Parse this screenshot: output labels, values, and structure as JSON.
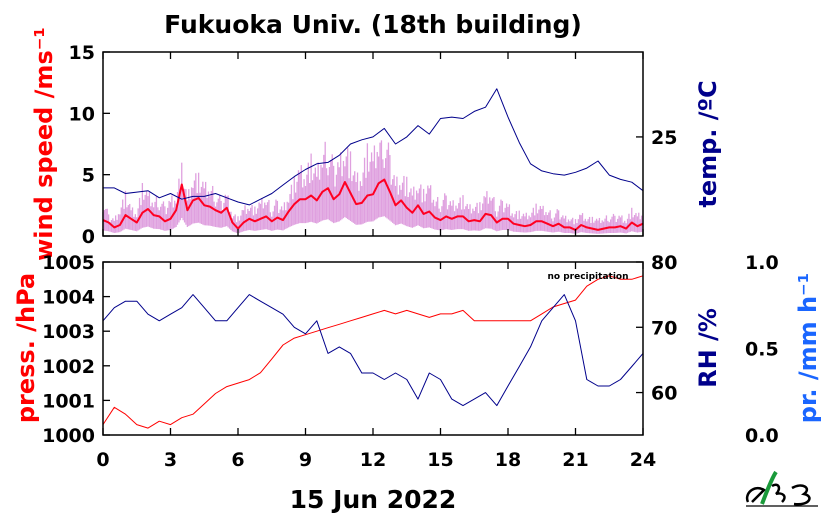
{
  "title": "Fukuoka Univ. (18th building)",
  "date_label": "15 Jun 2022",
  "colors": {
    "wind_mean": "#ff0022",
    "wind_gust": "#d98fd9",
    "temperature": "#00008b",
    "pressure": "#ff0000",
    "rh": "#00008b",
    "precip": "#1a66ff",
    "logo_green": "#1a9a3a"
  },
  "logo_icon": "fukuoka-univ-logo",
  "chart_data": [
    {
      "type": "line",
      "panel": "top",
      "title": "Fukuoka Univ. (18th building)",
      "xlabel": "",
      "x_ticks": [
        "0",
        "3",
        "6",
        "9",
        "12",
        "15",
        "18",
        "21",
        "24"
      ],
      "xlim": [
        0,
        24
      ],
      "ylabel_left": "wind speed /ms⁻¹",
      "ylim_left": [
        0,
        15
      ],
      "yticks_left": [
        "0",
        "5",
        "10",
        "15"
      ],
      "ylabel_right": "temp. /ºC",
      "ylim_right": [
        18,
        31
      ],
      "yticks_right": [
        "25"
      ],
      "series": [
        {
          "name": "wind speed (mean)",
          "axis": "left",
          "x": [
            0,
            0.25,
            0.5,
            0.75,
            1.0,
            1.25,
            1.5,
            1.75,
            2.0,
            2.25,
            2.5,
            2.75,
            3.0,
            3.25,
            3.5,
            3.75,
            4.0,
            4.25,
            4.5,
            4.75,
            5.0,
            5.25,
            5.5,
            5.75,
            6.0,
            6.25,
            6.5,
            6.75,
            7.0,
            7.25,
            7.5,
            7.75,
            8.0,
            8.25,
            8.5,
            8.75,
            9.0,
            9.25,
            9.5,
            9.75,
            10.0,
            10.25,
            10.5,
            10.75,
            11.0,
            11.25,
            11.5,
            11.75,
            12.0,
            12.25,
            12.5,
            12.75,
            13.0,
            13.25,
            13.5,
            13.75,
            14.0,
            14.25,
            14.5,
            14.75,
            15.0,
            15.25,
            15.5,
            15.75,
            16.0,
            16.25,
            16.5,
            16.75,
            17.0,
            17.25,
            17.5,
            17.75,
            18.0,
            18.25,
            18.5,
            18.75,
            19.0,
            19.25,
            19.5,
            19.75,
            20.0,
            20.25,
            20.5,
            20.75,
            21.0,
            21.25,
            21.5,
            21.75,
            22.0,
            22.25,
            22.5,
            22.75,
            23.0,
            23.25,
            23.5,
            23.75,
            24.0
          ],
          "values": [
            1.3,
            1.1,
            0.7,
            0.9,
            1.7,
            1.4,
            1.1,
            1.9,
            2.2,
            1.7,
            1.6,
            1.2,
            1.4,
            2.1,
            4.2,
            2.1,
            2.9,
            3.1,
            2.5,
            2.4,
            2.1,
            1.9,
            2.3,
            1.1,
            0.6,
            1.1,
            1.4,
            1.2,
            1.4,
            1.6,
            1.2,
            1.5,
            1.3,
            2.0,
            2.6,
            3.0,
            3.0,
            3.3,
            2.9,
            3.6,
            3.9,
            3.0,
            3.4,
            4.4,
            3.5,
            2.6,
            2.7,
            3.3,
            3.4,
            4.3,
            4.6,
            3.6,
            2.5,
            2.9,
            2.3,
            1.9,
            2.5,
            1.8,
            2.0,
            1.5,
            1.3,
            1.6,
            1.4,
            1.6,
            1.6,
            1.2,
            1.3,
            1.2,
            1.8,
            1.7,
            1.1,
            1.4,
            1.4,
            1.0,
            0.9,
            0.8,
            0.9,
            1.2,
            1.2,
            1.0,
            0.8,
            1.0,
            0.7,
            0.7,
            0.5,
            0.9,
            0.7,
            0.6,
            0.5,
            0.6,
            0.7,
            0.7,
            0.8,
            0.6,
            1.1,
            0.8,
            1.0
          ]
        },
        {
          "name": "wind speed (gust)",
          "axis": "left",
          "x": [
            0,
            0.25,
            0.5,
            0.75,
            1.0,
            1.25,
            1.5,
            1.75,
            2.0,
            2.25,
            2.5,
            2.75,
            3.0,
            3.25,
            3.5,
            3.75,
            4.0,
            4.25,
            4.5,
            4.75,
            5.0,
            5.25,
            5.5,
            5.75,
            6.0,
            6.25,
            6.5,
            6.75,
            7.0,
            7.25,
            7.5,
            7.75,
            8.0,
            8.25,
            8.5,
            8.75,
            9.0,
            9.25,
            9.5,
            9.75,
            10.0,
            10.25,
            10.5,
            10.75,
            11.0,
            11.25,
            11.5,
            11.75,
            12.0,
            12.25,
            12.5,
            12.75,
            13.0,
            13.25,
            13.5,
            13.75,
            14.0,
            14.25,
            14.5,
            14.75,
            15.0,
            15.25,
            15.5,
            15.75,
            16.0,
            16.25,
            16.5,
            16.75,
            17.0,
            17.25,
            17.5,
            17.75,
            18.0,
            18.25,
            18.5,
            18.75,
            19.0,
            19.25,
            19.5,
            19.75,
            20.0,
            20.25,
            20.5,
            20.75,
            21.0,
            21.25,
            21.5,
            21.75,
            22.0,
            22.25,
            22.5,
            22.75,
            23.0,
            23.25,
            23.5,
            23.75,
            24.0
          ],
          "values": [
            2.6,
            1.6,
            1.3,
            2.2,
            3.2,
            2.1,
            1.8,
            3.6,
            3.1,
            2.6,
            2.8,
            2.2,
            2.9,
            3.3,
            5.2,
            2.9,
            4.6,
            4.3,
            3.7,
            3.6,
            3.2,
            2.6,
            3.4,
            1.8,
            1.4,
            2.1,
            2.4,
            2.0,
            2.5,
            2.8,
            2.1,
            2.6,
            2.2,
            3.4,
            4.2,
            5.1,
            4.8,
            5.6,
            4.6,
            6.2,
            6.6,
            5.2,
            5.9,
            7.1,
            6.0,
            4.4,
            4.8,
            6.3,
            5.8,
            7.2,
            7.4,
            6.0,
            4.3,
            4.7,
            4.2,
            3.3,
            4.1,
            3.2,
            3.7,
            2.7,
            2.6,
            3.0,
            2.6,
            2.8,
            2.9,
            2.2,
            2.4,
            2.3,
            3.0,
            3.2,
            2.1,
            2.6,
            2.5,
            1.9,
            1.8,
            1.6,
            1.8,
            2.2,
            2.1,
            1.9,
            1.6,
            1.9,
            1.5,
            1.5,
            1.2,
            1.7,
            1.4,
            1.3,
            1.2,
            1.3,
            1.5,
            1.5,
            1.6,
            1.3,
            2.0,
            1.6,
            1.8
          ]
        },
        {
          "name": "temperature",
          "axis": "right",
          "x": [
            0,
            0.5,
            1.0,
            1.5,
            2.0,
            2.5,
            3.0,
            3.5,
            4.0,
            4.5,
            5.0,
            5.5,
            6.0,
            6.5,
            7.0,
            7.5,
            8.0,
            8.5,
            9.0,
            9.5,
            10.0,
            10.5,
            11.0,
            11.5,
            12.0,
            12.5,
            13.0,
            13.5,
            14.0,
            14.5,
            15.0,
            15.5,
            16.0,
            16.5,
            17.0,
            17.5,
            18.0,
            18.5,
            19.0,
            19.5,
            20.0,
            20.5,
            21.0,
            21.5,
            22.0,
            22.5,
            23.0,
            23.5,
            24.0
          ],
          "values": [
            21.4,
            21.4,
            21.0,
            21.1,
            21.2,
            20.7,
            21.0,
            20.6,
            20.8,
            20.8,
            21.0,
            20.7,
            20.4,
            20.2,
            20.6,
            21.0,
            21.6,
            22.2,
            22.7,
            23.1,
            23.2,
            23.7,
            24.5,
            24.8,
            25.0,
            25.6,
            24.5,
            25.0,
            25.8,
            25.2,
            26.3,
            26.4,
            26.3,
            26.8,
            27.1,
            28.4,
            26.4,
            24.6,
            23.1,
            22.6,
            22.4,
            22.3,
            22.5,
            22.8,
            23.3,
            22.3,
            22.0,
            21.8,
            21.2
          ]
        }
      ]
    },
    {
      "type": "line",
      "panel": "bottom",
      "xlabel": "15 Jun 2022",
      "x_ticks": [
        "0",
        "3",
        "6",
        "9",
        "12",
        "15",
        "18",
        "21",
        "24"
      ],
      "xlim": [
        0,
        24
      ],
      "ylabel_left": "press. /hPa",
      "ylim_left": [
        1000,
        1005
      ],
      "yticks_left": [
        "1000",
        "1001",
        "1002",
        "1003",
        "1004",
        "1005"
      ],
      "ylabel_right": "RH /%",
      "ylim_right": [
        53.5,
        80
      ],
      "yticks_right": [
        "60",
        "70",
        "80"
      ],
      "ylabel_right2": "pr. /mm h⁻¹",
      "ylim_right2": [
        0,
        1.0
      ],
      "yticks_right2": [
        "0.0",
        "0.5",
        "1.0"
      ],
      "annotation": "no precipitation",
      "series": [
        {
          "name": "pressure",
          "axis": "left",
          "x": [
            0,
            0.5,
            1.0,
            1.5,
            2.0,
            2.5,
            3.0,
            3.5,
            4.0,
            4.5,
            5.0,
            5.5,
            6.0,
            6.5,
            7.0,
            7.5,
            8.0,
            8.5,
            9.0,
            9.5,
            10.0,
            10.5,
            11.0,
            11.5,
            12.0,
            12.5,
            13.0,
            13.5,
            14.0,
            14.5,
            15.0,
            15.5,
            16.0,
            16.5,
            17.0,
            17.5,
            18.0,
            18.5,
            19.0,
            19.5,
            20.0,
            20.5,
            21.0,
            21.5,
            22.0,
            22.5,
            23.0,
            23.5,
            24.0
          ],
          "values": [
            1000.3,
            1000.8,
            1000.6,
            1000.3,
            1000.2,
            1000.4,
            1000.3,
            1000.5,
            1000.6,
            1000.9,
            1001.2,
            1001.4,
            1001.5,
            1001.6,
            1001.8,
            1002.2,
            1002.6,
            1002.8,
            1002.9,
            1003.0,
            1003.1,
            1003.2,
            1003.3,
            1003.4,
            1003.5,
            1003.6,
            1003.5,
            1003.6,
            1003.5,
            1003.4,
            1003.5,
            1003.5,
            1003.6,
            1003.3,
            1003.3,
            1003.3,
            1003.3,
            1003.3,
            1003.3,
            1003.5,
            1003.7,
            1003.8,
            1003.9,
            1004.3,
            1004.5,
            1004.6,
            1004.5,
            1004.5,
            1004.6
          ]
        },
        {
          "name": "RH",
          "axis": "right",
          "x": [
            0,
            0.5,
            1.0,
            1.5,
            2.0,
            2.5,
            3.0,
            3.5,
            4.0,
            4.5,
            5.0,
            5.5,
            6.0,
            6.5,
            7.0,
            7.5,
            8.0,
            8.5,
            9.0,
            9.5,
            10.0,
            10.5,
            11.0,
            11.5,
            12.0,
            12.5,
            13.0,
            13.5,
            14.0,
            14.5,
            15.0,
            15.5,
            16.0,
            16.5,
            17.0,
            17.5,
            18.0,
            18.5,
            19.0,
            19.5,
            20.0,
            20.5,
            21.0,
            21.5,
            22.0,
            22.5,
            23.0,
            23.5,
            24.0
          ],
          "values": [
            71,
            73,
            74,
            74,
            72,
            71,
            72,
            73,
            75,
            73,
            71,
            71,
            73,
            75,
            74,
            73,
            72,
            70,
            69,
            71,
            66,
            67,
            66,
            63,
            63,
            62,
            63,
            62,
            59,
            63,
            62,
            59,
            58,
            59,
            60,
            58,
            61,
            64,
            67,
            71,
            73,
            75,
            71,
            62,
            61,
            61,
            62,
            64,
            66
          ]
        }
      ]
    }
  ]
}
